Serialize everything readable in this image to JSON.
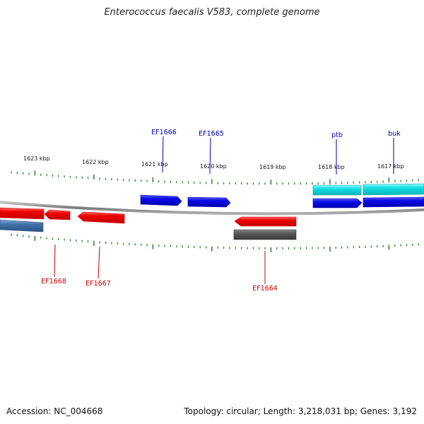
{
  "title": "Enterococcus faecalis V583, complete genome",
  "footer": {
    "accession": "Accession: NC_004668",
    "info": "Topology: circular; Length: 3,218,031 bp; Genes: 3,192"
  },
  "colors": {
    "backbone": "#8a8a8a",
    "tick": "#1a7a1a",
    "forward_gene": "#0a0ae6",
    "reverse_gene": "#e60a0a",
    "rna": "#12e0e6",
    "other_forward": "#3f6fa8",
    "other_reverse": "#555555",
    "label_forward": "#0000b4",
    "label_reverse": "#c80000"
  },
  "kbp_labels": [
    {
      "text": "1623 kbp",
      "kbp": 1623
    },
    {
      "text": "1622 kbp",
      "kbp": 1622
    },
    {
      "text": "1621 kbp",
      "kbp": 1621
    },
    {
      "text": "1620 kbp",
      "kbp": 1620
    },
    {
      "text": "1619 kbp",
      "kbp": 1619
    },
    {
      "text": "1618 kbp",
      "kbp": 1618
    },
    {
      "text": "1617 kbp",
      "kbp": 1617
    }
  ],
  "features": [
    {
      "name": "EF1668",
      "strand": "reverse",
      "kind": "cds",
      "labeled": true
    },
    {
      "name": "EF1668b",
      "strand": "reverse",
      "kind": "cds",
      "labeled": false
    },
    {
      "name": "EF1668c",
      "strand": "reverse",
      "kind": "other",
      "labeled": false
    },
    {
      "name": "EF1667",
      "strand": "reverse",
      "kind": "cds",
      "labeled": true
    },
    {
      "name": "EF1666",
      "strand": "forward",
      "kind": "cds",
      "labeled": true
    },
    {
      "name": "EF1665",
      "strand": "forward",
      "kind": "cds",
      "labeled": true
    },
    {
      "name": "EF1664",
      "strand": "reverse",
      "kind": "cds",
      "labeled": true
    },
    {
      "name": "EF1664b",
      "strand": "reverse",
      "kind": "other",
      "labeled": false
    },
    {
      "name": "ptb",
      "strand": "forward",
      "kind": "cds",
      "labeled": true
    },
    {
      "name": "ptb-rna",
      "strand": "forward",
      "kind": "rna",
      "labeled": false
    },
    {
      "name": "buk",
      "strand": "forward",
      "kind": "cds",
      "labeled": true
    },
    {
      "name": "buk-rna",
      "strand": "forward",
      "kind": "rna",
      "labeled": false
    }
  ],
  "gene_labels": [
    {
      "text": "EF1666",
      "strand": "forward"
    },
    {
      "text": "EF1665",
      "strand": "forward"
    },
    {
      "text": "ptb",
      "strand": "forward"
    },
    {
      "text": "buk",
      "strand": "forward"
    },
    {
      "text": "EF1668",
      "strand": "reverse"
    },
    {
      "text": "EF1667",
      "strand": "reverse"
    },
    {
      "text": "EF1664",
      "strand": "reverse"
    }
  ]
}
